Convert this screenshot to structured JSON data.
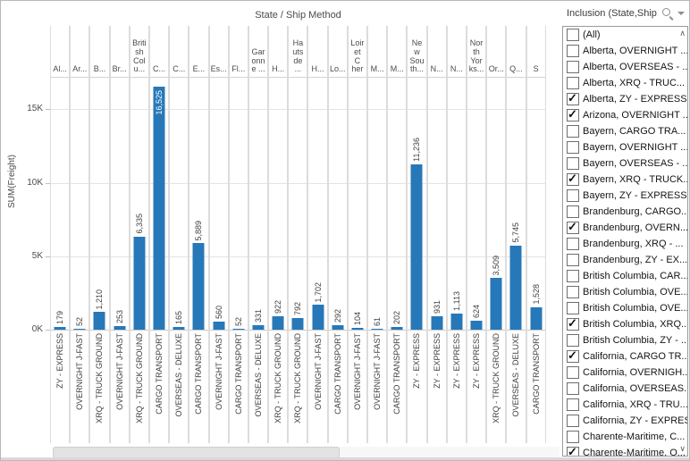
{
  "chart_data": {
    "type": "bar",
    "title": "State / Ship Method",
    "ylabel": "SUM(Freight)",
    "ylim": [
      0,
      17300
    ],
    "grid": true,
    "bar_color": "#2778b9",
    "y_ticks": [
      {
        "label": "0K",
        "value": 0
      },
      {
        "label": "5K",
        "value": 5000
      },
      {
        "label": "10K",
        "value": 10000
      },
      {
        "label": "15K",
        "value": 15000
      }
    ],
    "columns": [
      {
        "state": "Al...",
        "ship": "ZY - EXPRESS",
        "value": 179,
        "label": "179",
        "inside": false
      },
      {
        "state": "Ar...",
        "ship": "OVERNIGHT J-FAST",
        "value": 52,
        "label": "52",
        "inside": false
      },
      {
        "state": "B...",
        "ship": "XRQ - TRUCK GROUND",
        "value": 1210,
        "label": "1,210",
        "inside": false
      },
      {
        "state": "Br...",
        "ship": "OVERNIGHT J-FAST",
        "value": 253,
        "label": "253",
        "inside": false
      },
      {
        "state": "Briti\nsh\nCol\nu...",
        "ship": "XRQ - TRUCK GROUND",
        "value": 6335,
        "label": "6,335",
        "inside": false
      },
      {
        "state": "C...",
        "ship": "CARGO TRANSPORT",
        "value": 16525,
        "label": "16,525",
        "inside": true
      },
      {
        "state": "C...",
        "ship": "OVERSEAS - DELUXE",
        "value": 165,
        "label": "165",
        "inside": false
      },
      {
        "state": "E...",
        "ship": "CARGO TRANSPORT",
        "value": 5889,
        "label": "5,889",
        "inside": false
      },
      {
        "state": "Es...",
        "ship": "OVERNIGHT J-FAST",
        "value": 560,
        "label": "560",
        "inside": false
      },
      {
        "state": "Fl...",
        "ship": "CARGO TRANSPORT",
        "value": 52,
        "label": "52",
        "inside": false
      },
      {
        "state": "Gar\nonn\ne ...",
        "ship": "OVERSEAS - DELUXE",
        "value": 331,
        "label": "331",
        "inside": false
      },
      {
        "state": "H...",
        "ship": "XRQ - TRUCK GROUND",
        "value": 922,
        "label": "922",
        "inside": false
      },
      {
        "state": "Ha\nuts\nde\n...",
        "ship": "XRQ - TRUCK GROUND",
        "value": 792,
        "label": "792",
        "inside": false
      },
      {
        "state": "H...",
        "ship": "OVERNIGHT J-FAST",
        "value": 1702,
        "label": "1,702",
        "inside": false
      },
      {
        "state": "Lo...",
        "ship": "CARGO TRANSPORT",
        "value": 292,
        "label": "292",
        "inside": false
      },
      {
        "state": "Loir\net\nC\nher",
        "ship": "OVERNIGHT J-FAST",
        "value": 104,
        "label": "104",
        "inside": false
      },
      {
        "state": "M...",
        "ship": "OVERNIGHT J-FAST",
        "value": 61,
        "label": "61",
        "inside": false
      },
      {
        "state": "M...",
        "ship": "CARGO TRANSPORT",
        "value": 202,
        "label": "202",
        "inside": false
      },
      {
        "state": "Ne\nw\nSou\nth...",
        "ship": "ZY - EXPRESS",
        "value": 11236,
        "label": "11,236",
        "inside": false
      },
      {
        "state": "N...",
        "ship": "ZY - EXPRESS",
        "value": 931,
        "label": "931",
        "inside": false
      },
      {
        "state": "N...",
        "ship": "ZY - EXPRESS",
        "value": 1113,
        "label": "1,113",
        "inside": false
      },
      {
        "state": "Nor\nth\nYor\nks...",
        "ship": "ZY - EXPRESS",
        "value": 624,
        "label": "624",
        "inside": false
      },
      {
        "state": "Or...",
        "ship": "XRQ - TRUCK GROUND",
        "value": 3509,
        "label": "3,509",
        "inside": false
      },
      {
        "state": "Q...",
        "ship": "OVERSEAS - DELUXE",
        "value": 5745,
        "label": "5,745",
        "inside": false
      },
      {
        "state": "S",
        "ship": "CARGO TRANSPORT",
        "value": 1528,
        "label": "1,528",
        "inside": false
      }
    ]
  },
  "filter_panel": {
    "title": "Inclusion (State,Ship...",
    "icons": {
      "search": "magnifier",
      "menu": "caret-down",
      "scroll_up": "chevron-up",
      "scroll_down": "chevron-down"
    },
    "items": [
      {
        "label": "(All)",
        "checked": false
      },
      {
        "label": "Alberta, OVERNIGHT ...",
        "checked": false
      },
      {
        "label": "Alberta, OVERSEAS - ...",
        "checked": false
      },
      {
        "label": "Alberta, XRQ - TRUC...",
        "checked": false
      },
      {
        "label": "Alberta, ZY - EXPRESS",
        "checked": true
      },
      {
        "label": "Arizona, OVERNIGHT ...",
        "checked": true
      },
      {
        "label": "Bayern, CARGO TRA...",
        "checked": false
      },
      {
        "label": "Bayern, OVERNIGHT ...",
        "checked": false
      },
      {
        "label": "Bayern, OVERSEAS - ...",
        "checked": false
      },
      {
        "label": "Bayern, XRQ - TRUCK...",
        "checked": true
      },
      {
        "label": "Bayern, ZY - EXPRESS",
        "checked": false
      },
      {
        "label": "Brandenburg, CARGO...",
        "checked": false
      },
      {
        "label": "Brandenburg, OVERN...",
        "checked": true
      },
      {
        "label": "Brandenburg, XRQ - ...",
        "checked": false
      },
      {
        "label": "Brandenburg, ZY - EX...",
        "checked": false
      },
      {
        "label": "British Columbia, CAR...",
        "checked": false
      },
      {
        "label": "British Columbia, OVE...",
        "checked": false
      },
      {
        "label": "British Columbia, OVE...",
        "checked": false
      },
      {
        "label": "British Columbia, XRQ...",
        "checked": true
      },
      {
        "label": "British Columbia, ZY - ...",
        "checked": false
      },
      {
        "label": "California, CARGO TR...",
        "checked": true
      },
      {
        "label": "California, OVERNIGH...",
        "checked": false
      },
      {
        "label": "California, OVERSEAS...",
        "checked": false
      },
      {
        "label": "California, XRQ - TRU...",
        "checked": false
      },
      {
        "label": "California, ZY - EXPRESS",
        "checked": false
      },
      {
        "label": "Charente-Maritime, C...",
        "checked": false
      },
      {
        "label": "Charente-Maritime, O...",
        "checked": true
      }
    ]
  },
  "colors": {
    "bar": "#2778b9",
    "bar_label_inside": "#ffffff",
    "gridline": "#e4e4e4",
    "axis_text": "#4b4b4b",
    "column_separator": "#dcdcdc"
  }
}
